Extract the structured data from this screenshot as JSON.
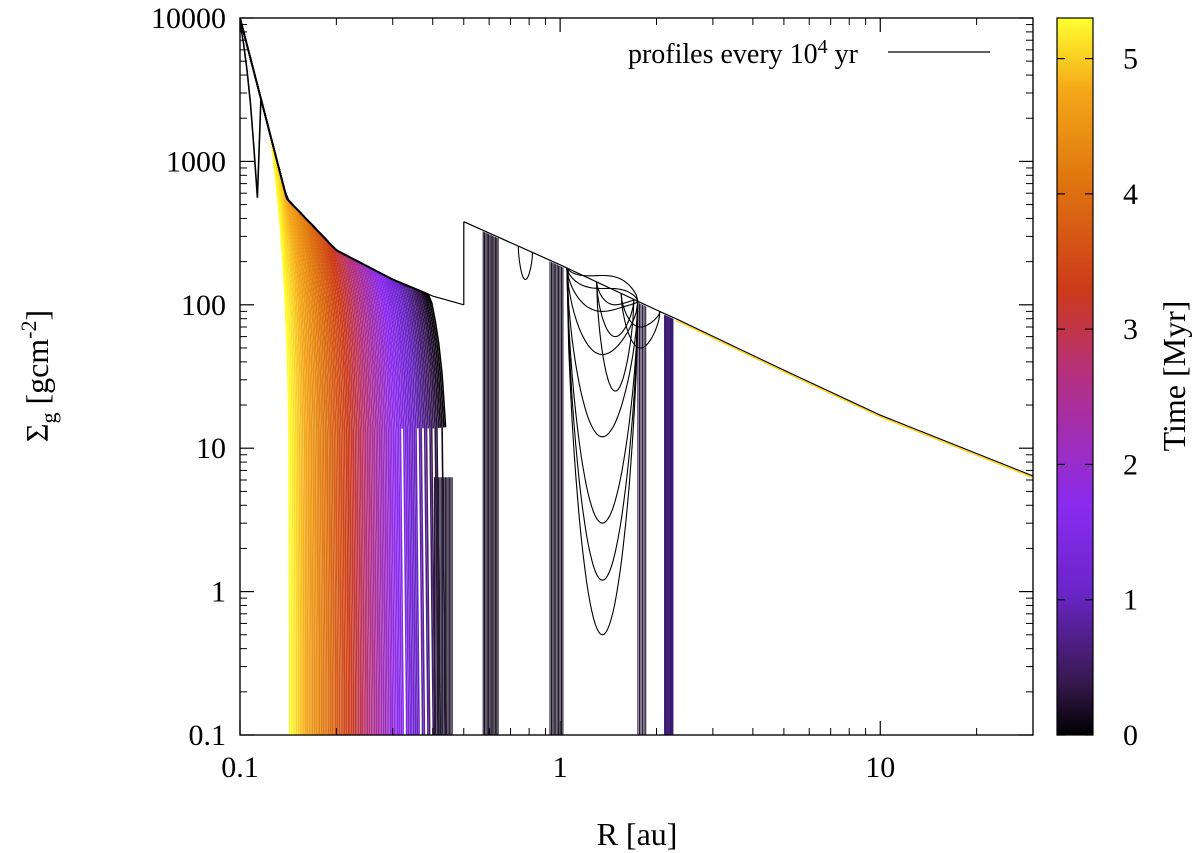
{
  "chart_data": {
    "type": "line",
    "title": "",
    "xlabel": "R [au]",
    "ylabel_main": "Σ",
    "ylabel_sub": "g",
    "ylabel_unit_pre": "[gcm",
    "ylabel_unit_sup": "-2",
    "ylabel_unit_post": "]",
    "xscale": "log",
    "yscale": "log",
    "xlim": [
      0.1,
      30
    ],
    "ylim": [
      0.1,
      10000
    ],
    "xticks": [
      0.1,
      1,
      10
    ],
    "xtick_labels": [
      "0.1",
      "1",
      "10"
    ],
    "yticks": [
      0.1,
      1,
      10,
      100,
      1000,
      10000
    ],
    "ytick_labels": [
      "0.1",
      "1",
      "10",
      "100",
      "1000",
      "10000"
    ],
    "legend": {
      "text_pre": "profiles every 10",
      "text_sup": "4",
      "text_post": " yr",
      "location": "top-right"
    },
    "colorbar": {
      "label": "Time [Myr]",
      "range": [
        0,
        5.3
      ],
      "ticks": [
        0,
        1,
        2,
        3,
        4,
        5
      ],
      "tick_labels": [
        "0",
        "1",
        "2",
        "3",
        "4",
        "5"
      ],
      "colormap": [
        "#000000",
        "#3a1a55",
        "#6a25c8",
        "#8a2bf0",
        "#b33080",
        "#cc3a1a",
        "#e0780f",
        "#f5a818",
        "#ffff30"
      ]
    },
    "series_description": "Gas surface density profiles every 1e4 yr, colored by time",
    "background_profile": {
      "inner": {
        "r": [
          0.1,
          0.14,
          0.2,
          0.3,
          0.4,
          0.5
        ],
        "sigma": [
          10000,
          550,
          240,
          150,
          115,
          100
        ]
      },
      "outer": {
        "r": [
          0.5,
          1,
          2,
          2.3,
          5,
          10,
          30
        ],
        "sigma": [
          380,
          190,
          92,
          80,
          35,
          17,
          6.4
        ]
      }
    },
    "evolving_inner_edge_r": {
      "t0": 0.45,
      "t_end": 0.143
    },
    "gap_edges_r": [
      0.58,
      0.63,
      0.93,
      1.0,
      1.2,
      1.7,
      2.2
    ]
  }
}
